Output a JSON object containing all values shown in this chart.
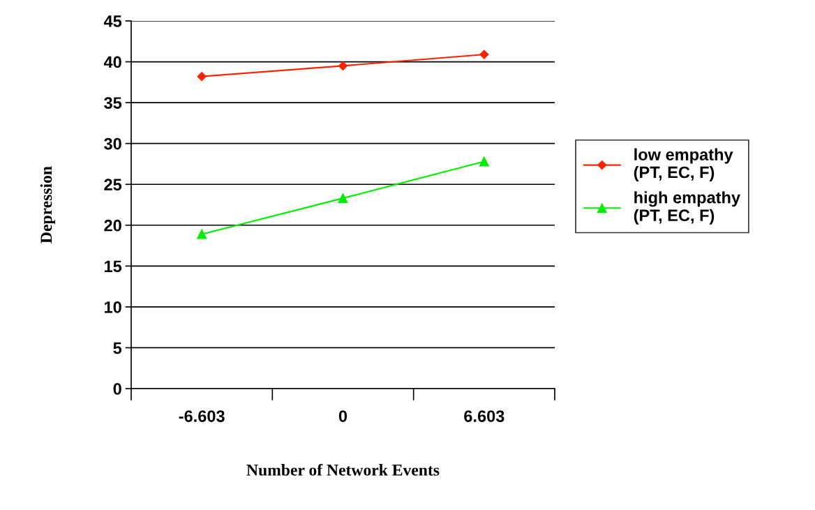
{
  "chart_data": {
    "type": "line",
    "xlabel": "Number of Network Events",
    "ylabel": "Depression",
    "categories": [
      "-6.603",
      "0",
      "6.603"
    ],
    "series": [
      {
        "name": "low empathy (PT, EC, F)",
        "color": "#ff2200",
        "marker": "diamond",
        "values": [
          38.2,
          39.5,
          40.9
        ]
      },
      {
        "name": "high empathy (PT, EC, F)",
        "color": "#00ee00",
        "marker": "triangle",
        "values": [
          18.9,
          23.3,
          27.8
        ]
      }
    ],
    "ylim": [
      0,
      45
    ],
    "yticks": [
      0,
      5,
      10,
      15,
      20,
      25,
      30,
      35,
      40,
      45
    ],
    "grid": "y",
    "legend": "right",
    "line_style": "solid"
  }
}
